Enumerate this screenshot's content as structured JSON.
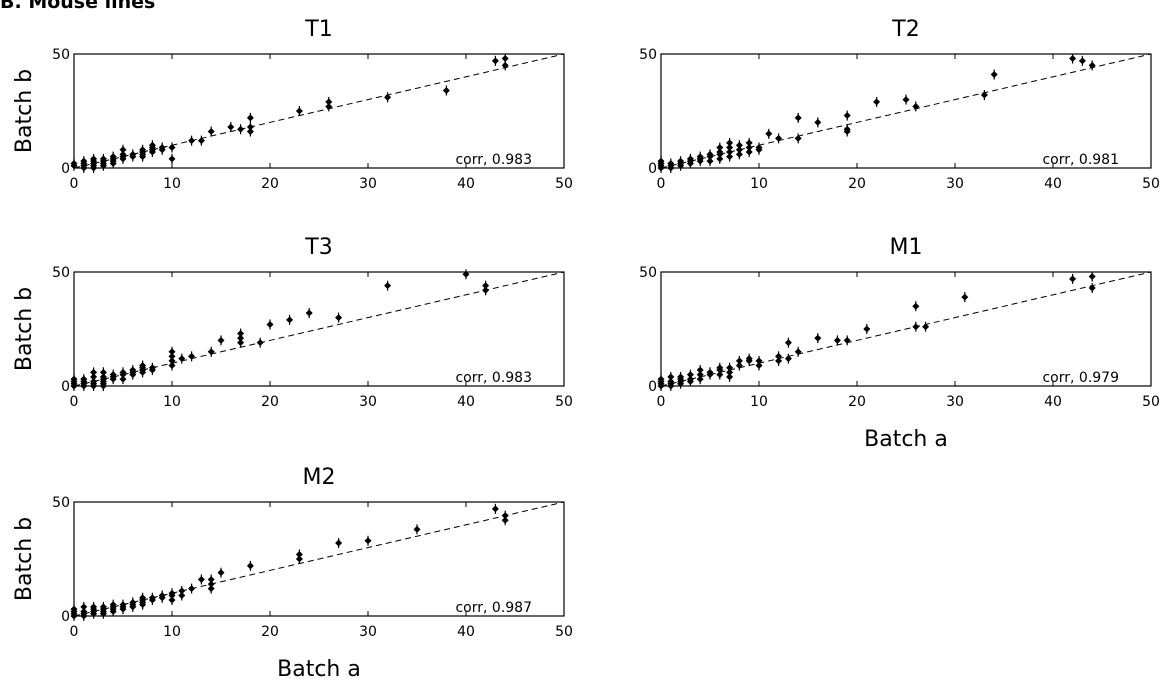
{
  "figure": {
    "header": "B. Mouse lines"
  },
  "chart_data": [
    {
      "type": "scatter",
      "title": "T1",
      "ylabel": "Batch b",
      "xlabel": "",
      "xlim": [
        0,
        50
      ],
      "ylim": [
        0,
        50
      ],
      "xticks": [
        0,
        10,
        20,
        30,
        40,
        50
      ],
      "yticks": [
        0,
        50
      ],
      "corr_label": "corr, 0.983",
      "reference_line": {
        "style": "dashed",
        "from": [
          0,
          0
        ],
        "to": [
          50,
          50
        ]
      },
      "points": [
        [
          0,
          1
        ],
        [
          0,
          2
        ],
        [
          1,
          0
        ],
        [
          1,
          1
        ],
        [
          1,
          2
        ],
        [
          1,
          3
        ],
        [
          2,
          0
        ],
        [
          2,
          1
        ],
        [
          2,
          2
        ],
        [
          2,
          3
        ],
        [
          2,
          4
        ],
        [
          3,
          1
        ],
        [
          3,
          2
        ],
        [
          3,
          3
        ],
        [
          3,
          4
        ],
        [
          4,
          2
        ],
        [
          4,
          3
        ],
        [
          4,
          4
        ],
        [
          4,
          5
        ],
        [
          5,
          4
        ],
        [
          5,
          5
        ],
        [
          5,
          6
        ],
        [
          5,
          8
        ],
        [
          6,
          5
        ],
        [
          6,
          6
        ],
        [
          7,
          5
        ],
        [
          7,
          6
        ],
        [
          7,
          7
        ],
        [
          7,
          8
        ],
        [
          8,
          7
        ],
        [
          8,
          8
        ],
        [
          8,
          9
        ],
        [
          8,
          10
        ],
        [
          9,
          8
        ],
        [
          9,
          9
        ],
        [
          10,
          4
        ],
        [
          10,
          9
        ],
        [
          12,
          12
        ],
        [
          13,
          12
        ],
        [
          14,
          16
        ],
        [
          16,
          18
        ],
        [
          17,
          17
        ],
        [
          18,
          16
        ],
        [
          18,
          18
        ],
        [
          18,
          22
        ],
        [
          23,
          25
        ],
        [
          26,
          27
        ],
        [
          26,
          29
        ],
        [
          32,
          31
        ],
        [
          38,
          34
        ],
        [
          43,
          47
        ],
        [
          44,
          48
        ],
        [
          44,
          45
        ]
      ]
    },
    {
      "type": "scatter",
      "title": "T2",
      "ylabel": "",
      "xlabel": "",
      "xlim": [
        0,
        50
      ],
      "ylim": [
        0,
        50
      ],
      "xticks": [
        0,
        10,
        20,
        30,
        40,
        50
      ],
      "yticks": [
        0,
        50
      ],
      "corr_label": "corr, 0.981",
      "reference_line": {
        "style": "dashed",
        "from": [
          0,
          0
        ],
        "to": [
          50,
          50
        ]
      },
      "points": [
        [
          0,
          0
        ],
        [
          0,
          1
        ],
        [
          0,
          2
        ],
        [
          0,
          3
        ],
        [
          1,
          0
        ],
        [
          1,
          1
        ],
        [
          1,
          2
        ],
        [
          2,
          1
        ],
        [
          2,
          2
        ],
        [
          2,
          3
        ],
        [
          3,
          2
        ],
        [
          3,
          3
        ],
        [
          3,
          4
        ],
        [
          4,
          3
        ],
        [
          4,
          4
        ],
        [
          4,
          5
        ],
        [
          5,
          3
        ],
        [
          5,
          5
        ],
        [
          5,
          6
        ],
        [
          6,
          4
        ],
        [
          6,
          6
        ],
        [
          6,
          7
        ],
        [
          6,
          9
        ],
        [
          7,
          5
        ],
        [
          7,
          7
        ],
        [
          7,
          9
        ],
        [
          7,
          11
        ],
        [
          8,
          6
        ],
        [
          8,
          8
        ],
        [
          8,
          10
        ],
        [
          9,
          7
        ],
        [
          9,
          9
        ],
        [
          9,
          11
        ],
        [
          10,
          8
        ],
        [
          10,
          9
        ],
        [
          11,
          15
        ],
        [
          12,
          13
        ],
        [
          14,
          13
        ],
        [
          14,
          22
        ],
        [
          16,
          20
        ],
        [
          19,
          16
        ],
        [
          19,
          17
        ],
        [
          19,
          23
        ],
        [
          22,
          29
        ],
        [
          25,
          30
        ],
        [
          26,
          27
        ],
        [
          33,
          32
        ],
        [
          34,
          41
        ],
        [
          42,
          48
        ],
        [
          43,
          47
        ],
        [
          44,
          45
        ]
      ]
    },
    {
      "type": "scatter",
      "title": "T3",
      "ylabel": "Batch b",
      "xlabel": "",
      "xlim": [
        0,
        50
      ],
      "ylim": [
        0,
        50
      ],
      "xticks": [
        0,
        10,
        20,
        30,
        40,
        50
      ],
      "yticks": [
        0,
        50
      ],
      "corr_label": "corr, 0.983",
      "reference_line": {
        "style": "dashed",
        "from": [
          0,
          0
        ],
        "to": [
          50,
          50
        ]
      },
      "points": [
        [
          0,
          0
        ],
        [
          0,
          1
        ],
        [
          0,
          2
        ],
        [
          0,
          3
        ],
        [
          1,
          0
        ],
        [
          1,
          1
        ],
        [
          1,
          2
        ],
        [
          1,
          3
        ],
        [
          2,
          0
        ],
        [
          2,
          1
        ],
        [
          2,
          2
        ],
        [
          2,
          4
        ],
        [
          2,
          6
        ],
        [
          3,
          0
        ],
        [
          3,
          1
        ],
        [
          3,
          2
        ],
        [
          3,
          3
        ],
        [
          3,
          4
        ],
        [
          3,
          6
        ],
        [
          4,
          3
        ],
        [
          4,
          4
        ],
        [
          4,
          5
        ],
        [
          5,
          3
        ],
        [
          5,
          5
        ],
        [
          5,
          6
        ],
        [
          6,
          5
        ],
        [
          6,
          6
        ],
        [
          6,
          7
        ],
        [
          7,
          6
        ],
        [
          7,
          7
        ],
        [
          7,
          8
        ],
        [
          7,
          9
        ],
        [
          8,
          7
        ],
        [
          8,
          8
        ],
        [
          10,
          9
        ],
        [
          10,
          11
        ],
        [
          10,
          13
        ],
        [
          10,
          15
        ],
        [
          11,
          12
        ],
        [
          12,
          13
        ],
        [
          14,
          15
        ],
        [
          15,
          20
        ],
        [
          17,
          19
        ],
        [
          17,
          21
        ],
        [
          17,
          23
        ],
        [
          19,
          19
        ],
        [
          20,
          27
        ],
        [
          22,
          29
        ],
        [
          24,
          32
        ],
        [
          27,
          30
        ],
        [
          32,
          44
        ],
        [
          40,
          49
        ],
        [
          42,
          42
        ],
        [
          42,
          44
        ]
      ]
    },
    {
      "type": "scatter",
      "title": "M1",
      "ylabel": "",
      "xlabel": "Batch a",
      "xlim": [
        0,
        50
      ],
      "ylim": [
        0,
        50
      ],
      "xticks": [
        0,
        10,
        20,
        30,
        40,
        50
      ],
      "yticks": [
        0,
        50
      ],
      "corr_label": "corr, 0.979",
      "reference_line": {
        "style": "dashed",
        "from": [
          0,
          0
        ],
        "to": [
          50,
          50
        ]
      },
      "points": [
        [
          0,
          0
        ],
        [
          0,
          1
        ],
        [
          0,
          2
        ],
        [
          0,
          3
        ],
        [
          1,
          0
        ],
        [
          1,
          1
        ],
        [
          1,
          2
        ],
        [
          1,
          4
        ],
        [
          2,
          1
        ],
        [
          2,
          2
        ],
        [
          2,
          3
        ],
        [
          2,
          4
        ],
        [
          3,
          2
        ],
        [
          3,
          3
        ],
        [
          3,
          5
        ],
        [
          4,
          3
        ],
        [
          4,
          5
        ],
        [
          4,
          7
        ],
        [
          5,
          5
        ],
        [
          5,
          6
        ],
        [
          6,
          5
        ],
        [
          6,
          7
        ],
        [
          6,
          8
        ],
        [
          7,
          4
        ],
        [
          7,
          6
        ],
        [
          7,
          8
        ],
        [
          8,
          9
        ],
        [
          8,
          11
        ],
        [
          9,
          11
        ],
        [
          9,
          12
        ],
        [
          10,
          9
        ],
        [
          10,
          11
        ],
        [
          12,
          11
        ],
        [
          12,
          13
        ],
        [
          13,
          12
        ],
        [
          13,
          19
        ],
        [
          14,
          15
        ],
        [
          16,
          21
        ],
        [
          18,
          20
        ],
        [
          19,
          20
        ],
        [
          21,
          25
        ],
        [
          26,
          26
        ],
        [
          26,
          35
        ],
        [
          27,
          26
        ],
        [
          31,
          39
        ],
        [
          42,
          47
        ],
        [
          44,
          43
        ],
        [
          44,
          48
        ]
      ]
    },
    {
      "type": "scatter",
      "title": "M2",
      "ylabel": "Batch b",
      "xlabel": "Batch a",
      "xlim": [
        0,
        50
      ],
      "ylim": [
        0,
        50
      ],
      "xticks": [
        0,
        10,
        20,
        30,
        40,
        50
      ],
      "yticks": [
        0,
        50
      ],
      "corr_label": "corr, 0.987",
      "reference_line": {
        "style": "dashed",
        "from": [
          0,
          0
        ],
        "to": [
          50,
          50
        ]
      },
      "points": [
        [
          0,
          0
        ],
        [
          0,
          1
        ],
        [
          0,
          2
        ],
        [
          0,
          3
        ],
        [
          1,
          0
        ],
        [
          1,
          1
        ],
        [
          1,
          2
        ],
        [
          1,
          4
        ],
        [
          2,
          1
        ],
        [
          2,
          2
        ],
        [
          2,
          3
        ],
        [
          2,
          4
        ],
        [
          3,
          1
        ],
        [
          3,
          2
        ],
        [
          3,
          3
        ],
        [
          3,
          4
        ],
        [
          4,
          2
        ],
        [
          4,
          3
        ],
        [
          4,
          4
        ],
        [
          4,
          5
        ],
        [
          5,
          3
        ],
        [
          5,
          4
        ],
        [
          5,
          5
        ],
        [
          6,
          4
        ],
        [
          6,
          5
        ],
        [
          6,
          6
        ],
        [
          7,
          5
        ],
        [
          7,
          6
        ],
        [
          7,
          7
        ],
        [
          7,
          8
        ],
        [
          8,
          7
        ],
        [
          8,
          8
        ],
        [
          9,
          8
        ],
        [
          9,
          9
        ],
        [
          10,
          7
        ],
        [
          10,
          9
        ],
        [
          10,
          10
        ],
        [
          11,
          9
        ],
        [
          11,
          11
        ],
        [
          12,
          12
        ],
        [
          13,
          16
        ],
        [
          14,
          12
        ],
        [
          14,
          14
        ],
        [
          14,
          16
        ],
        [
          15,
          19
        ],
        [
          18,
          22
        ],
        [
          23,
          25
        ],
        [
          23,
          27
        ],
        [
          27,
          32
        ],
        [
          30,
          33
        ],
        [
          35,
          38
        ],
        [
          43,
          47
        ],
        [
          44,
          42
        ],
        [
          44,
          44
        ]
      ]
    }
  ]
}
